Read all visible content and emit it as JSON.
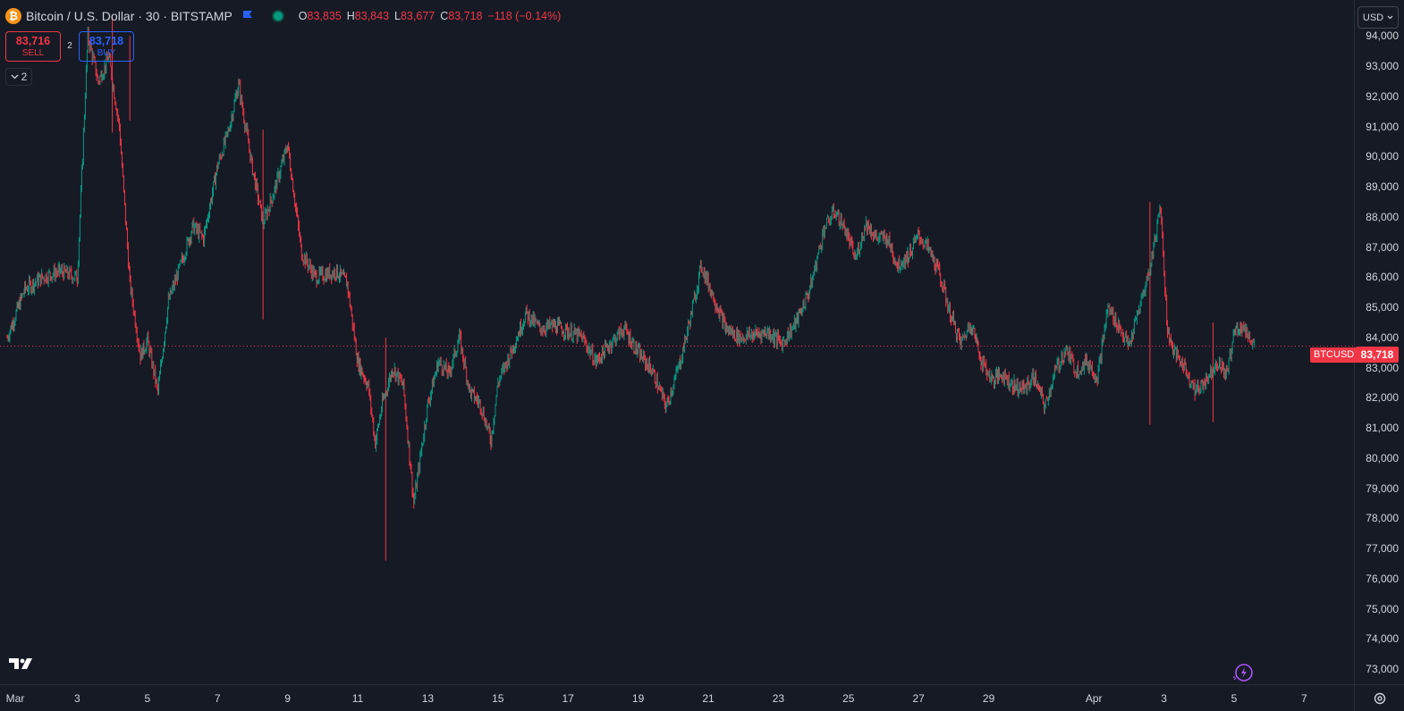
{
  "header": {
    "symbol_title": "Bitcoin / U.S. Dollar · 30 · BITSTAMP",
    "ohlc": {
      "o_label": "O",
      "o_value": "83,835",
      "h_label": "H",
      "h_value": "83,843",
      "l_label": "L",
      "l_value": "83,677",
      "c_label": "C",
      "c_value": "83,718",
      "change": "−118 (−0.14%)"
    }
  },
  "trade": {
    "sell_price": "83,716",
    "sell_label": "SELL",
    "buy_price": "83,718",
    "buy_label": "BUY",
    "spread": "2"
  },
  "indicators_toggle": {
    "count": "2"
  },
  "currency": {
    "selected": "USD"
  },
  "last_price": {
    "symbol": "BTCUSD",
    "value": "83,718"
  },
  "icons": {
    "coin": "bitcoin-coin-icon",
    "flag": "flag-icon",
    "status": "market-status-icon",
    "collapse": "chevron-down-icon",
    "logo": "tradingview-logo-icon",
    "bolt": "lightning-icon",
    "settings": "gear-icon"
  },
  "colors": {
    "up": "#089981",
    "down": "#f23645",
    "background": "#161a25",
    "grid": "#2a2e39"
  },
  "chart_data": {
    "type": "line",
    "style": "candlestick",
    "interval": "30",
    "y_ticks": [
      "94,000",
      "93,000",
      "92,000",
      "91,000",
      "90,000",
      "89,000",
      "88,000",
      "87,000",
      "86,000",
      "85,000",
      "84,000",
      "83,000",
      "82,000",
      "81,000",
      "80,000",
      "79,000",
      "78,000",
      "77,000",
      "76,000",
      "75,000",
      "74,000",
      "73,000"
    ],
    "ylim": [
      72500,
      95200
    ],
    "x_ticks": [
      "Mar",
      "3",
      "5",
      "7",
      "9",
      "11",
      "13",
      "15",
      "17",
      "19",
      "21",
      "23",
      "25",
      "27",
      "29",
      "Apr",
      "3",
      "5",
      "7"
    ],
    "x_tick_days": [
      0,
      2,
      4,
      6,
      8,
      10,
      12,
      14,
      16,
      18,
      20,
      22,
      24,
      26,
      28,
      31,
      33,
      35,
      37
    ],
    "xlim_days": [
      0,
      38.4
    ],
    "last_price": 83718,
    "series": [
      {
        "x": [
          0,
          0.5,
          1,
          1.5,
          2,
          2.3,
          2.6,
          2.9,
          3.2,
          3.5,
          3.8,
          4,
          4.3,
          4.6,
          5,
          5.3,
          5.6,
          6,
          6.3,
          6.6,
          7,
          7.3,
          7.6,
          8,
          8.4,
          8.8,
          9.1,
          9.4,
          9.7,
          10,
          10.3,
          10.5,
          10.7,
          11,
          11.3,
          11.6,
          12,
          12.3,
          12.6,
          12.9,
          13.2,
          13.5,
          13.8,
          14,
          14.4,
          14.8,
          15.2,
          15.6,
          16,
          16.4,
          16.8,
          17.2,
          17.6,
          18,
          18.4,
          18.8,
          19.2,
          19.5,
          19.8,
          20.1,
          20.5,
          20.9,
          21.3,
          21.7,
          22.1,
          22.5,
          22.9,
          23.3,
          23.6,
          23.9,
          24.2,
          24.5,
          24.8,
          25.1,
          25.4,
          25.7,
          26,
          26.3,
          26.6,
          26.9,
          27.2,
          27.5,
          27.8,
          28.1,
          28.4,
          28.7,
          29,
          29.3,
          29.6,
          29.9,
          30.2,
          30.5,
          30.8,
          31.1,
          31.4,
          31.7,
          32,
          32.3,
          32.6,
          32.9,
          33.1,
          33.3,
          33.6,
          33.9,
          34.2,
          34.5,
          34.8,
          35,
          35.2,
          35.4,
          35.6
        ],
        "values": [
          84000,
          85600,
          86000,
          86200,
          86000,
          94000,
          92500,
          93300,
          91000,
          85800,
          83400,
          83900,
          82200,
          85200,
          86600,
          87700,
          87300,
          89700,
          90800,
          92400,
          89600,
          87800,
          88800,
          90400,
          86800,
          86000,
          86100,
          86200,
          85800,
          83200,
          82400,
          80500,
          81800,
          83000,
          82400,
          78500,
          81800,
          83200,
          82800,
          84000,
          82200,
          81800,
          80600,
          82500,
          83600,
          84800,
          84300,
          84400,
          84200,
          84000,
          83200,
          83800,
          84300,
          83500,
          82900,
          81700,
          83200,
          84700,
          86400,
          85500,
          84300,
          84000,
          84100,
          84200,
          83800,
          84500,
          85600,
          87600,
          88200,
          87600,
          86600,
          87800,
          87300,
          87300,
          86400,
          86700,
          87400,
          86900,
          86100,
          84800,
          83800,
          84500,
          83200,
          82600,
          82800,
          82400,
          82300,
          82700,
          81700,
          82900,
          83600,
          82900,
          83200,
          82700,
          85000,
          84400,
          83700,
          85000,
          86300,
          88400,
          84200,
          83500,
          83000,
          82200,
          82600,
          83200,
          82800,
          84200,
          84400,
          84100,
          83700
        ]
      }
    ]
  }
}
